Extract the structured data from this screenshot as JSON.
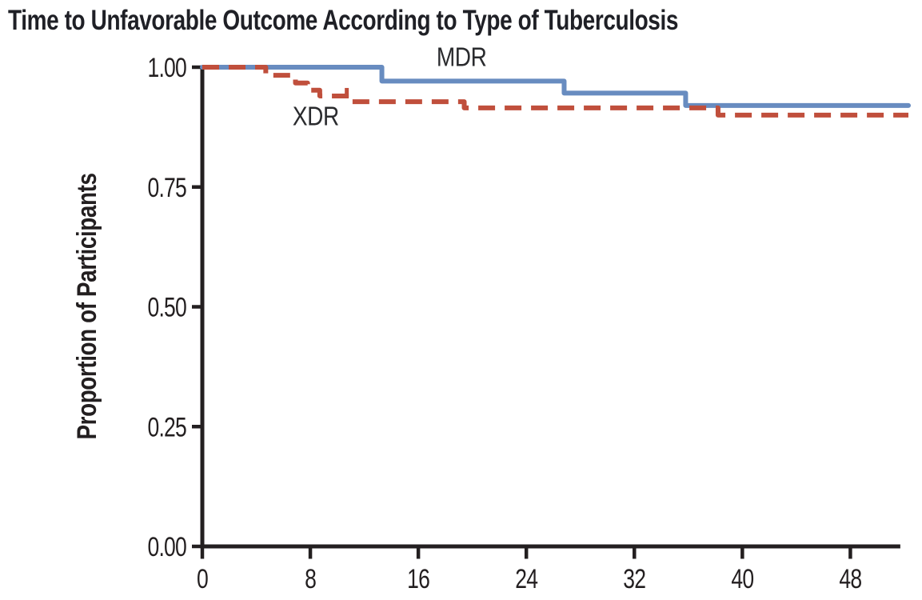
{
  "chart_data": {
    "type": "line",
    "variant": "kaplan_meier_step",
    "title": "Time to Unfavorable Outcome According to Type of Tuberculosis",
    "xlabel": "",
    "ylabel": "Proportion of Participants",
    "xlim": [
      0,
      52.3
    ],
    "ylim": [
      0.0,
      1.0
    ],
    "x_axis_end": 51.7,
    "grid": false,
    "legend_position": "inline-curve-labels",
    "axis_color": "#231f20",
    "background_color": "#ffffff",
    "x_ticks": [
      {
        "value": 0,
        "label": "0"
      },
      {
        "value": 8,
        "label": "8"
      },
      {
        "value": 16,
        "label": "16"
      },
      {
        "value": 24,
        "label": "24"
      },
      {
        "value": 32,
        "label": "32"
      },
      {
        "value": 40,
        "label": "40"
      },
      {
        "value": 48,
        "label": "48"
      }
    ],
    "y_ticks": [
      {
        "value": 0.0,
        "label": "0.00"
      },
      {
        "value": 0.25,
        "label": "0.25"
      },
      {
        "value": 0.5,
        "label": "0.50"
      },
      {
        "value": 0.75,
        "label": "0.75"
      },
      {
        "value": 1.0,
        "label": "1.00"
      }
    ],
    "series": [
      {
        "name": "MDR",
        "color": "#688cc0",
        "line_style": "solid",
        "steps": [
          [
            0,
            1.0
          ],
          [
            13.3,
            0.971
          ],
          [
            26.8,
            0.946
          ],
          [
            35.8,
            0.92
          ]
        ],
        "end_x": 52.3,
        "censor_marks": []
      },
      {
        "name": "XDR",
        "color": "#c04f3c",
        "line_style": "dashed",
        "steps": [
          [
            0,
            1.0
          ],
          [
            4.7,
            0.983
          ],
          [
            6.9,
            0.967
          ],
          [
            7.8,
            0.952
          ],
          [
            8.7,
            0.94
          ],
          [
            10.9,
            0.928
          ],
          [
            19.4,
            0.915
          ],
          [
            38.2,
            0.9
          ]
        ],
        "end_x": 52.3,
        "censor_marks": [
          [
            10.7,
            0.94
          ]
        ]
      }
    ],
    "annotations": [
      {
        "text": "MDR",
        "x": 19.2,
        "y": 1.021
      },
      {
        "text": "XDR",
        "x": 8.4,
        "y": 0.897
      }
    ]
  }
}
